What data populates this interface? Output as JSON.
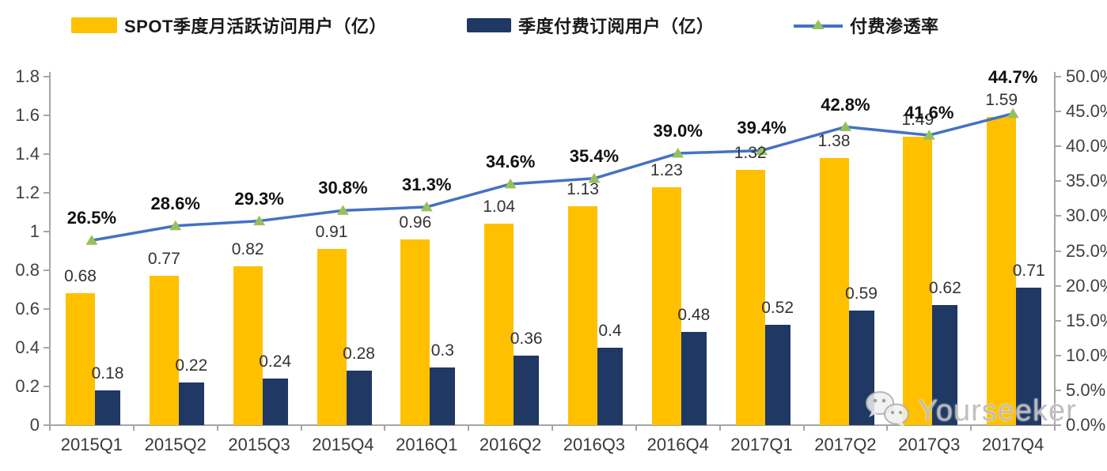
{
  "legend": [
    {
      "label": "SPOT季度月活跃访问用户（亿）",
      "type": "bar",
      "color": "#FFC000"
    },
    {
      "label": "季度付费订阅用户（亿）",
      "type": "bar",
      "color": "#1F3864"
    },
    {
      "label": "付费渗透率",
      "type": "line",
      "color": "#4472C4",
      "marker_color": "#97C05C"
    }
  ],
  "chart_data": {
    "type": "bar",
    "subtype": "clustered-bar-with-line-dual-axis",
    "categories": [
      "2015Q1",
      "2015Q2",
      "2015Q3",
      "2015Q4",
      "2016Q1",
      "2016Q2",
      "2016Q3",
      "2016Q4",
      "2017Q1",
      "2017Q2",
      "2017Q3",
      "2017Q4"
    ],
    "series": [
      {
        "name": "SPOT季度月活跃访问用户（亿）",
        "type": "bar",
        "axis": "left",
        "color": "#FFC000",
        "values": [
          0.68,
          0.77,
          0.82,
          0.91,
          0.96,
          1.04,
          1.13,
          1.23,
          1.32,
          1.38,
          1.49,
          1.59
        ],
        "labels": [
          "0.68",
          "0.77",
          "0.82",
          "0.91",
          "0.96",
          "1.04",
          "1.13",
          "1.23",
          "1.32",
          "1.38",
          "1.49",
          "1.59"
        ]
      },
      {
        "name": "季度付费订阅用户（亿）",
        "type": "bar",
        "axis": "left",
        "color": "#1F3864",
        "values": [
          0.18,
          0.22,
          0.24,
          0.28,
          0.3,
          0.36,
          0.4,
          0.48,
          0.52,
          0.59,
          0.62,
          0.71
        ],
        "labels": [
          "0.18",
          "0.22",
          "0.24",
          "0.28",
          "0.3",
          "0.36",
          "0.4",
          "0.48",
          "0.52",
          "0.59",
          "0.62",
          "0.71"
        ]
      },
      {
        "name": "付费渗透率",
        "type": "line",
        "axis": "right",
        "color": "#4472C4",
        "marker": "triangle",
        "marker_color": "#97C05C",
        "values": [
          26.5,
          28.6,
          29.3,
          30.8,
          31.3,
          34.6,
          35.4,
          39.0,
          39.4,
          42.8,
          41.6,
          44.7
        ],
        "labels": [
          "26.5%",
          "28.6%",
          "29.3%",
          "30.8%",
          "31.3%",
          "34.6%",
          "35.4%",
          "39.0%",
          "39.4%",
          "42.8%",
          "41.6%",
          "44.7%"
        ]
      }
    ],
    "left_axis": {
      "min": 0,
      "max": 1.8,
      "step": 0.2,
      "tick_labels": [
        "1.8",
        "1.6",
        "1.4",
        "1.2",
        "1",
        "0.8",
        "0.6",
        "0.4",
        "0.2",
        "0"
      ]
    },
    "right_axis": {
      "min": 0,
      "max": 50,
      "step": 5,
      "tick_labels": [
        "50.0%",
        "45.0%",
        "40.0%",
        "35.0%",
        "30.0%",
        "25.0%",
        "20.0%",
        "15.0%",
        "10.0%",
        "5.0%",
        "0.0%"
      ]
    },
    "grid": false,
    "legend_position": "top",
    "title": ""
  },
  "watermark": {
    "text": "Yourseeker",
    "icon": "wechat-icon"
  },
  "colors": {
    "bar_mau": "#FFC000",
    "bar_paid": "#1F3864",
    "line": "#4472C4",
    "marker": "#97C05C",
    "axis": "#A6A6A6",
    "watermark": "#BABABA"
  }
}
